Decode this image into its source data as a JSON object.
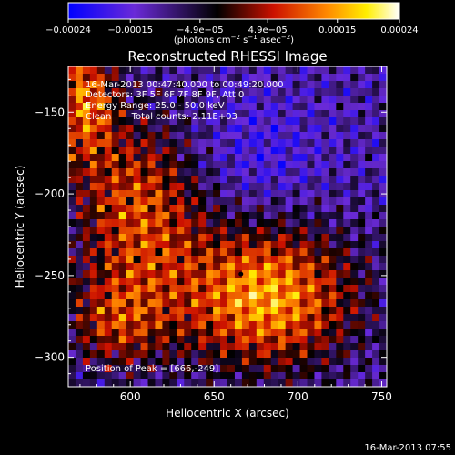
{
  "chart_data": {
    "type": "heatmap",
    "title": "Reconstructed RHESSI Image",
    "xlabel": "Heliocentric X (arcsec)",
    "ylabel": "Heliocentric Y (arcsec)",
    "xlim": [
      563,
      753
    ],
    "ylim": [
      -318,
      -122
    ],
    "x_ticks": [
      600,
      650,
      700,
      750
    ],
    "y_ticks": [
      -300,
      -250,
      -200,
      -150
    ],
    "x_tick_labels": [
      "600",
      "650",
      "700",
      "750"
    ],
    "y_tick_labels": [
      "−300",
      "−250",
      "−200",
      "−150"
    ],
    "annotations": [
      "16-Mar-2013 00:47:40.000 to 00:49:20.000",
      "Detectors: 3F 5F 6F 7F 8F 9F, Att 0",
      "Energy Range: 25.0 - 50.0 keV",
      "Clean       Total counts: 2.11E+03"
    ],
    "peak_label": "Position of Peak = [666,-249]",
    "peak": [
      666,
      -249
    ],
    "colorbar": {
      "min": -0.00024,
      "max": 0.00024,
      "ticks": [
        -0.00024,
        -0.00015,
        -4.9e-05,
        4.9e-05,
        0.00015,
        0.00024
      ],
      "tick_labels": [
        "−0.00024",
        "−0.00015",
        "−4.9e−05",
        "4.9e−05",
        "0.00015",
        "0.00024"
      ],
      "unit_base": "(photons cm",
      "unit_exp1": "−2",
      "unit_mid": " s",
      "unit_exp2": "−1",
      "unit_mid2": " asec",
      "unit_exp3": "−2",
      "unit_end": ")",
      "colors": [
        "#0000ff",
        "#7a3ae0",
        "#000000",
        "#cc1100",
        "#ff8800",
        "#ffee00",
        "#ffffff"
      ]
    },
    "grid": false,
    "legend": "none",
    "colormap_note_colors": {
      "background": "#000000",
      "field": "#7a3ae0"
    }
  },
  "footer": {
    "timestamp": "16-Mar-2013 07:55"
  }
}
